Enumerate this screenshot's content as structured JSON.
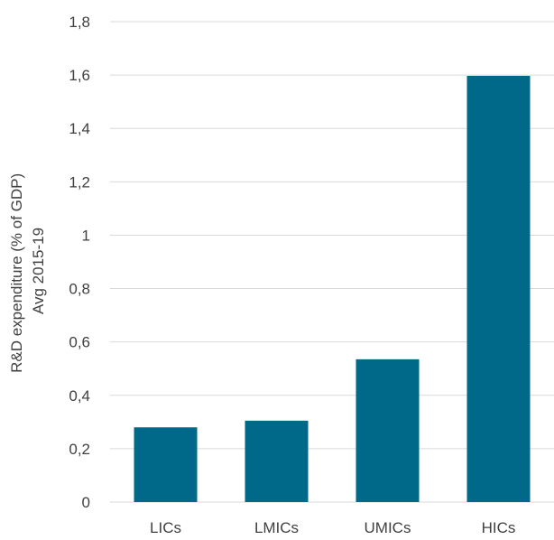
{
  "chart_data": {
    "type": "bar",
    "categories": [
      "LICs",
      "LMICs",
      "UMICs",
      "HICs"
    ],
    "values": [
      0.28,
      0.305,
      0.535,
      1.597
    ],
    "ylabel_lines": [
      "R&D expenditure (% of GDP)",
      "Avg 2015-19"
    ],
    "ylim": [
      0,
      1.8
    ],
    "yticks": [
      0,
      0.2,
      0.4,
      0.6,
      0.8,
      1.0,
      1.2,
      1.4,
      1.6,
      1.8
    ],
    "ytick_labels": [
      "0",
      "0,2",
      "0,4",
      "0,6",
      "0,8",
      "1",
      "1,2",
      "1,4",
      "1,6",
      "1,8"
    ],
    "grid": true,
    "legend": "none",
    "bar_color": "#006888"
  }
}
